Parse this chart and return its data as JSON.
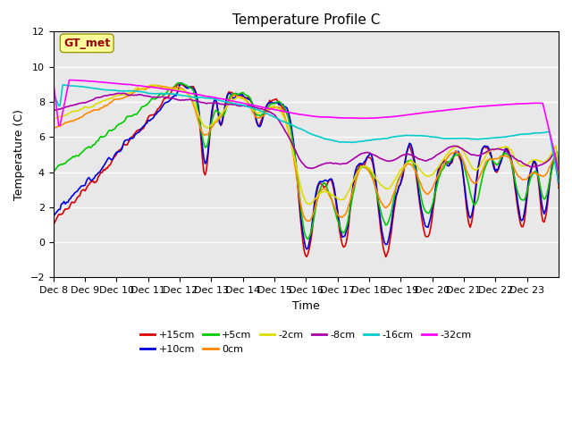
{
  "title": "Temperature Profile C",
  "xlabel": "Time",
  "ylabel": "Temperature (C)",
  "ylim": [
    -2,
    12
  ],
  "series_colors": {
    "+15cm": "#dd0000",
    "+10cm": "#0000dd",
    "+5cm": "#00cc00",
    "0cm": "#ff8800",
    "-2cm": "#dddd00",
    "-8cm": "#aa00aa",
    "-16cm": "#00cccc",
    "-32cm": "#ff00ff"
  },
  "xtick_labels": [
    "Dec 8",
    "Dec 9",
    "Dec 10",
    "Dec 11",
    "Dec 12",
    "Dec 13",
    "Dec 14",
    "Dec 15",
    "Dec 16",
    "Dec 17",
    "Dec 18",
    "Dec 19",
    "Dec 20",
    "Dec 21",
    "Dec 22",
    "Dec 23"
  ],
  "fig_bg": "#ffffff",
  "plot_bg": "#e8e8e8",
  "grid_color": "#ffffff",
  "annotation_text": "GT_met",
  "annotation_fg": "#990000",
  "annotation_bg": "#ffff99",
  "annotation_border": "#999900"
}
